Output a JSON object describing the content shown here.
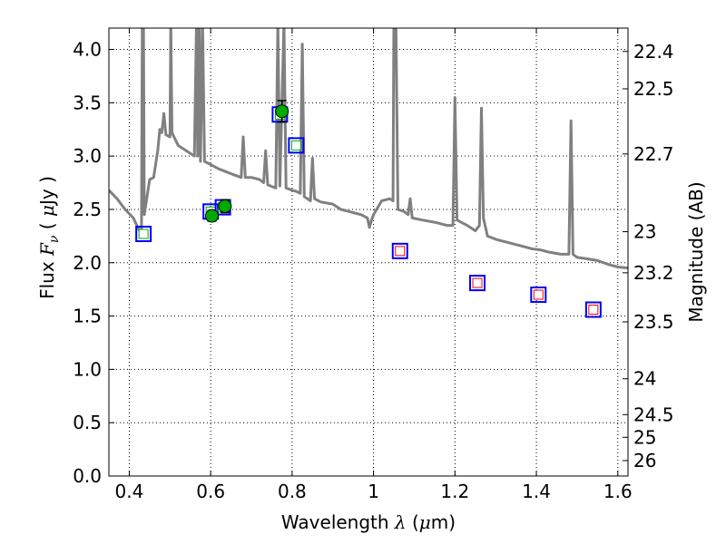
{
  "chart_data": {
    "type": "scatter",
    "xlabel": {
      "pre": "Wavelength  ",
      "sym": "λ",
      "post": " (",
      "mu": "μ",
      "unit": "m)"
    },
    "ylabel": {
      "pre": "Flux  ",
      "sym": "F",
      "sub": "ν",
      "post": "  ( ",
      "mu": "μ",
      "unit": "Jy )"
    },
    "y2label": "Magnitude (AB)",
    "xlim": [
      0.35,
      1.625
    ],
    "ylim": [
      0.0,
      4.2
    ],
    "grid": true,
    "x_ticks": [
      {
        "v": 0.4,
        "label": "0.4"
      },
      {
        "v": 0.6,
        "label": "0.6"
      },
      {
        "v": 0.8,
        "label": "0.8"
      },
      {
        "v": 1.0,
        "label": "1"
      },
      {
        "v": 1.2,
        "label": "1.2"
      },
      {
        "v": 1.4,
        "label": "1.4"
      },
      {
        "v": 1.6,
        "label": "1.6"
      }
    ],
    "y_ticks": [
      {
        "v": 0.0,
        "label": "0.0"
      },
      {
        "v": 0.5,
        "label": "0.5"
      },
      {
        "v": 1.0,
        "label": "1.0"
      },
      {
        "v": 1.5,
        "label": "1.5"
      },
      {
        "v": 2.0,
        "label": "2.0"
      },
      {
        "v": 2.5,
        "label": "2.5"
      },
      {
        "v": 3.0,
        "label": "3.0"
      },
      {
        "v": 3.5,
        "label": "3.5"
      },
      {
        "v": 4.0,
        "label": "4.0"
      }
    ],
    "y2_ticks": [
      {
        "label": "22.4"
      },
      {
        "label": "22.5"
      },
      {
        "label": "22.7"
      },
      {
        "label": "23"
      },
      {
        "label": "23.2"
      },
      {
        "label": "23.5"
      },
      {
        "label": "24"
      },
      {
        "label": "24.5"
      },
      {
        "label": "25"
      },
      {
        "label": "26"
      }
    ],
    "colors": {
      "spectrum": "#808080",
      "observed": "#00aa00",
      "model_box": "#0000ff",
      "model_inner_optical": "#00aa00",
      "model_inner_nir": "#ff0000",
      "grid": "#000000"
    },
    "spectrum": [
      [
        0.35,
        2.68
      ],
      [
        0.37,
        2.6
      ],
      [
        0.39,
        2.5
      ],
      [
        0.41,
        2.42
      ],
      [
        0.425,
        2.3
      ],
      [
        0.43,
        2.3
      ],
      [
        0.432,
        4.25
      ],
      [
        0.435,
        4.25
      ],
      [
        0.437,
        2.45
      ],
      [
        0.45,
        2.78
      ],
      [
        0.46,
        2.8
      ],
      [
        0.47,
        3.05
      ],
      [
        0.475,
        3.25
      ],
      [
        0.48,
        3.22
      ],
      [
        0.485,
        3.4
      ],
      [
        0.49,
        3.2
      ],
      [
        0.5,
        3.18
      ],
      [
        0.502,
        4.25
      ],
      [
        0.505,
        3.22
      ],
      [
        0.52,
        3.1
      ],
      [
        0.54,
        3.05
      ],
      [
        0.56,
        3.0
      ],
      [
        0.565,
        4.25
      ],
      [
        0.568,
        3.0
      ],
      [
        0.572,
        4.25
      ],
      [
        0.575,
        2.95
      ],
      [
        0.58,
        4.25
      ],
      [
        0.585,
        2.95
      ],
      [
        0.6,
        2.92
      ],
      [
        0.62,
        2.88
      ],
      [
        0.64,
        2.85
      ],
      [
        0.66,
        2.82
      ],
      [
        0.675,
        2.8
      ],
      [
        0.68,
        3.18
      ],
      [
        0.685,
        2.8
      ],
      [
        0.7,
        2.8
      ],
      [
        0.72,
        2.78
      ],
      [
        0.73,
        2.75
      ],
      [
        0.735,
        3.05
      ],
      [
        0.74,
        2.73
      ],
      [
        0.76,
        2.7
      ],
      [
        0.765,
        4.25
      ],
      [
        0.77,
        2.72
      ],
      [
        0.78,
        4.25
      ],
      [
        0.785,
        2.7
      ],
      [
        0.8,
        2.68
      ],
      [
        0.81,
        2.67
      ],
      [
        0.82,
        2.65
      ],
      [
        0.825,
        4.05
      ],
      [
        0.83,
        2.62
      ],
      [
        0.845,
        2.58
      ],
      [
        0.85,
        2.98
      ],
      [
        0.855,
        2.6
      ],
      [
        0.87,
        2.57
      ],
      [
        0.9,
        2.55
      ],
      [
        0.92,
        2.5
      ],
      [
        0.95,
        2.47
      ],
      [
        0.97,
        2.45
      ],
      [
        0.985,
        2.42
      ],
      [
        0.99,
        2.33
      ],
      [
        0.995,
        2.4
      ],
      [
        1.0,
        2.45
      ],
      [
        1.02,
        2.58
      ],
      [
        1.04,
        2.6
      ],
      [
        1.048,
        2.58
      ],
      [
        1.05,
        4.25
      ],
      [
        1.055,
        4.25
      ],
      [
        1.06,
        2.5
      ],
      [
        1.075,
        2.48
      ],
      [
        1.085,
        2.45
      ],
      [
        1.09,
        2.6
      ],
      [
        1.095,
        2.42
      ],
      [
        1.12,
        2.4
      ],
      [
        1.15,
        2.38
      ],
      [
        1.18,
        2.35
      ],
      [
        1.195,
        2.35
      ],
      [
        1.2,
        3.55
      ],
      [
        1.205,
        2.4
      ],
      [
        1.23,
        2.35
      ],
      [
        1.25,
        2.3
      ],
      [
        1.26,
        2.35
      ],
      [
        1.265,
        3.45
      ],
      [
        1.27,
        2.42
      ],
      [
        1.28,
        2.25
      ],
      [
        1.3,
        2.22
      ],
      [
        1.33,
        2.19
      ],
      [
        1.36,
        2.16
      ],
      [
        1.39,
        2.13
      ],
      [
        1.41,
        2.12
      ],
      [
        1.43,
        2.1
      ],
      [
        1.46,
        2.08
      ],
      [
        1.48,
        2.08
      ],
      [
        1.485,
        3.33
      ],
      [
        1.49,
        2.08
      ],
      [
        1.5,
        2.05
      ],
      [
        1.52,
        2.04
      ],
      [
        1.55,
        2.02
      ],
      [
        1.58,
        1.98
      ],
      [
        1.6,
        1.96
      ],
      [
        1.625,
        1.95
      ]
    ],
    "observed": [
      {
        "x": 0.603,
        "y": 2.44,
        "err": 0.05
      },
      {
        "x": 0.635,
        "y": 2.53,
        "err": 0.06
      },
      {
        "x": 0.775,
        "y": 3.42,
        "err": 0.1
      }
    ],
    "model_points": [
      {
        "x": 0.435,
        "y": 2.27,
        "band": "optical"
      },
      {
        "x": 0.6,
        "y": 2.48,
        "band": "optical"
      },
      {
        "x": 0.63,
        "y": 2.52,
        "band": "optical"
      },
      {
        "x": 0.77,
        "y": 3.39,
        "band": "optical"
      },
      {
        "x": 0.81,
        "y": 3.1,
        "band": "optical"
      },
      {
        "x": 1.065,
        "y": 2.11,
        "band": "nir"
      },
      {
        "x": 1.255,
        "y": 1.81,
        "band": "nir"
      },
      {
        "x": 1.405,
        "y": 1.7,
        "band": "nir"
      },
      {
        "x": 1.54,
        "y": 1.56,
        "band": "nir"
      }
    ]
  }
}
